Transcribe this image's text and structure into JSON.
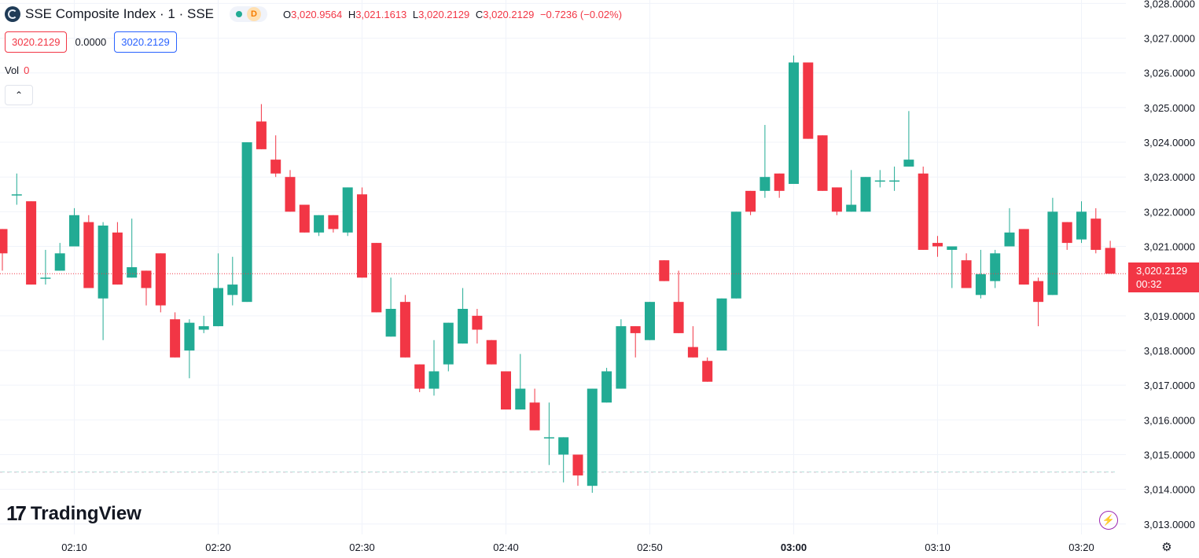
{
  "header": {
    "title": "SSE Composite Index · 1 · SSE",
    "market_badge": "D",
    "ohlc": {
      "o_label": "O",
      "o_value": "3,020.9564",
      "h_label": "H",
      "h_value": "3,021.1613",
      "l_label": "L",
      "l_value": "3,020.2129",
      "c_label": "C",
      "c_value": "3,020.2129",
      "change": "−0.7236 (−0.02%)"
    },
    "sell_price": "3020.2129",
    "spread": "0.0000",
    "buy_price": "3020.2129"
  },
  "volume": {
    "label": "Vol",
    "value": "0"
  },
  "collapse_icon": "chevron-up-icon",
  "branding": {
    "logo_text": "TradingView",
    "logo_mark": "17"
  },
  "price_label": {
    "price": "3,020.2129",
    "countdown": "00:32"
  },
  "colors": {
    "up": "#22ab94",
    "down": "#f23645",
    "grid": "#f0f3fa",
    "text": "#131722"
  },
  "chart_data": {
    "type": "candlestick",
    "y_ticks": [
      3013,
      3014,
      3015,
      3016,
      3017,
      3018,
      3019,
      3021,
      3022,
      3023,
      3024,
      3025,
      3026,
      3027,
      3028
    ],
    "y_tick_decimals": 4,
    "ylim": [
      3012.7,
      3028.1
    ],
    "x_ticks": [
      {
        "i": 5,
        "label": "02:10",
        "bold": false
      },
      {
        "i": 15,
        "label": "02:20",
        "bold": false
      },
      {
        "i": 25,
        "label": "02:30",
        "bold": false
      },
      {
        "i": 35,
        "label": "02:40",
        "bold": false
      },
      {
        "i": 45,
        "label": "02:50",
        "bold": false
      },
      {
        "i": 55,
        "label": "03:00",
        "bold": true
      },
      {
        "i": 65,
        "label": "03:10",
        "bold": false
      },
      {
        "i": 75,
        "label": "03:20",
        "bold": false
      }
    ],
    "last_price": 3020.2129,
    "baseline_price": 3014.5,
    "candles": [
      {
        "t": "02:05",
        "o": 3021.5,
        "h": 3021.5,
        "l": 3020.3,
        "c": 3020.8
      },
      {
        "t": "02:06",
        "o": 3022.5,
        "h": 3023.1,
        "l": 3022.2,
        "c": 3022.5
      },
      {
        "t": "02:07",
        "o": 3022.3,
        "h": 3022.3,
        "l": 3019.9,
        "c": 3019.9
      },
      {
        "t": "02:08",
        "o": 3020.1,
        "h": 3020.9,
        "l": 3019.9,
        "c": 3020.1
      },
      {
        "t": "02:09",
        "o": 3020.3,
        "h": 3021.1,
        "l": 3020.3,
        "c": 3020.8
      },
      {
        "t": "02:10",
        "o": 3021.0,
        "h": 3022.1,
        "l": 3021.0,
        "c": 3021.9
      },
      {
        "t": "02:11",
        "o": 3021.7,
        "h": 3021.9,
        "l": 3019.8,
        "c": 3019.8
      },
      {
        "t": "02:12",
        "o": 3019.5,
        "h": 3021.7,
        "l": 3018.3,
        "c": 3021.6
      },
      {
        "t": "02:13",
        "o": 3021.4,
        "h": 3021.7,
        "l": 3019.9,
        "c": 3019.9
      },
      {
        "t": "02:14",
        "o": 3020.1,
        "h": 3021.8,
        "l": 3020.1,
        "c": 3020.4
      },
      {
        "t": "02:15",
        "o": 3020.3,
        "h": 3020.3,
        "l": 3019.3,
        "c": 3019.8
      },
      {
        "t": "02:16",
        "o": 3020.8,
        "h": 3020.8,
        "l": 3019.1,
        "c": 3019.3
      },
      {
        "t": "02:17",
        "o": 3018.9,
        "h": 3019.1,
        "l": 3017.8,
        "c": 3017.8
      },
      {
        "t": "02:18",
        "o": 3018.0,
        "h": 3018.9,
        "l": 3017.2,
        "c": 3018.8
      },
      {
        "t": "02:19",
        "o": 3018.6,
        "h": 3019.0,
        "l": 3018.5,
        "c": 3018.7
      },
      {
        "t": "02:20",
        "o": 3018.7,
        "h": 3020.8,
        "l": 3018.7,
        "c": 3019.8
      },
      {
        "t": "02:21",
        "o": 3019.6,
        "h": 3020.7,
        "l": 3019.3,
        "c": 3019.9
      },
      {
        "t": "02:22",
        "o": 3019.4,
        "h": 3024.0,
        "l": 3019.4,
        "c": 3024.0
      },
      {
        "t": "02:23",
        "o": 3024.6,
        "h": 3025.1,
        "l": 3023.8,
        "c": 3023.8
      },
      {
        "t": "02:24",
        "o": 3023.5,
        "h": 3024.2,
        "l": 3023.0,
        "c": 3023.1
      },
      {
        "t": "02:25",
        "o": 3023.0,
        "h": 3023.2,
        "l": 3022.0,
        "c": 3022.0
      },
      {
        "t": "02:26",
        "o": 3022.2,
        "h": 3022.2,
        "l": 3021.4,
        "c": 3021.4
      },
      {
        "t": "02:27",
        "o": 3021.4,
        "h": 3021.9,
        "l": 3021.3,
        "c": 3021.9
      },
      {
        "t": "02:28",
        "o": 3021.9,
        "h": 3021.9,
        "l": 3021.4,
        "c": 3021.5
      },
      {
        "t": "02:29",
        "o": 3021.4,
        "h": 3022.7,
        "l": 3021.3,
        "c": 3022.7
      },
      {
        "t": "02:30",
        "o": 3022.5,
        "h": 3022.7,
        "l": 3020.1,
        "c": 3020.1
      },
      {
        "t": "02:31",
        "o": 3021.1,
        "h": 3021.1,
        "l": 3019.1,
        "c": 3019.1
      },
      {
        "t": "02:32",
        "o": 3018.4,
        "h": 3020.1,
        "l": 3018.4,
        "c": 3019.2
      },
      {
        "t": "02:33",
        "o": 3019.4,
        "h": 3019.6,
        "l": 3017.8,
        "c": 3017.8
      },
      {
        "t": "02:34",
        "o": 3017.6,
        "h": 3017.6,
        "l": 3016.8,
        "c": 3016.9
      },
      {
        "t": "02:35",
        "o": 3016.9,
        "h": 3018.3,
        "l": 3016.7,
        "c": 3017.4
      },
      {
        "t": "02:36",
        "o": 3017.6,
        "h": 3018.8,
        "l": 3017.4,
        "c": 3018.8
      },
      {
        "t": "02:37",
        "o": 3018.2,
        "h": 3019.8,
        "l": 3018.2,
        "c": 3019.2
      },
      {
        "t": "02:38",
        "o": 3019.0,
        "h": 3019.2,
        "l": 3018.2,
        "c": 3018.6
      },
      {
        "t": "02:39",
        "o": 3018.3,
        "h": 3018.3,
        "l": 3017.6,
        "c": 3017.6
      },
      {
        "t": "02:40",
        "o": 3017.4,
        "h": 3017.4,
        "l": 3016.3,
        "c": 3016.3
      },
      {
        "t": "02:41",
        "o": 3016.3,
        "h": 3017.9,
        "l": 3016.3,
        "c": 3016.9
      },
      {
        "t": "02:42",
        "o": 3016.5,
        "h": 3016.9,
        "l": 3015.7,
        "c": 3015.7
      },
      {
        "t": "02:43",
        "o": 3015.5,
        "h": 3016.5,
        "l": 3014.7,
        "c": 3015.5
      },
      {
        "t": "02:44",
        "o": 3015.0,
        "h": 3015.5,
        "l": 3014.2,
        "c": 3015.5
      },
      {
        "t": "02:45",
        "o": 3015.0,
        "h": 3015.0,
        "l": 3014.1,
        "c": 3014.4
      },
      {
        "t": "02:46",
        "o": 3014.1,
        "h": 3016.9,
        "l": 3013.9,
        "c": 3016.9
      },
      {
        "t": "02:47",
        "o": 3016.5,
        "h": 3017.5,
        "l": 3016.5,
        "c": 3017.4
      },
      {
        "t": "02:48",
        "o": 3016.9,
        "h": 3018.9,
        "l": 3016.9,
        "c": 3018.7
      },
      {
        "t": "02:49",
        "o": 3018.7,
        "h": 3018.7,
        "l": 3017.8,
        "c": 3018.5
      },
      {
        "t": "02:50",
        "o": 3018.3,
        "h": 3019.4,
        "l": 3018.3,
        "c": 3019.4
      },
      {
        "t": "02:51",
        "o": 3020.6,
        "h": 3020.6,
        "l": 3020.0,
        "c": 3020.0
      },
      {
        "t": "02:52",
        "o": 3019.4,
        "h": 3020.3,
        "l": 3018.5,
        "c": 3018.5
      },
      {
        "t": "02:53",
        "o": 3018.1,
        "h": 3018.7,
        "l": 3017.8,
        "c": 3017.8
      },
      {
        "t": "02:54",
        "o": 3017.7,
        "h": 3017.8,
        "l": 3017.1,
        "c": 3017.1
      },
      {
        "t": "02:55",
        "o": 3018.0,
        "h": 3019.5,
        "l": 3018.0,
        "c": 3019.5
      },
      {
        "t": "02:56",
        "o": 3019.5,
        "h": 3022.0,
        "l": 3019.5,
        "c": 3022.0
      },
      {
        "t": "02:57",
        "o": 3022.6,
        "h": 3022.6,
        "l": 3021.9,
        "c": 3022.0
      },
      {
        "t": "02:58",
        "o": 3022.6,
        "h": 3024.5,
        "l": 3022.4,
        "c": 3023.0
      },
      {
        "t": "02:59",
        "o": 3023.1,
        "h": 3023.1,
        "l": 3022.4,
        "c": 3022.6
      },
      {
        "t": "03:00",
        "o": 3022.8,
        "h": 3026.5,
        "l": 3022.8,
        "c": 3026.3
      },
      {
        "t": "03:01",
        "o": 3026.3,
        "h": 3026.3,
        "l": 3024.1,
        "c": 3024.1
      },
      {
        "t": "03:02",
        "o": 3024.2,
        "h": 3024.2,
        "l": 3022.6,
        "c": 3022.6
      },
      {
        "t": "03:03",
        "o": 3022.7,
        "h": 3022.7,
        "l": 3021.9,
        "c": 3022.0
      },
      {
        "t": "03:04",
        "o": 3022.0,
        "h": 3023.2,
        "l": 3022.0,
        "c": 3022.2
      },
      {
        "t": "03:05",
        "o": 3022.0,
        "h": 3023.0,
        "l": 3022.0,
        "c": 3023.0
      },
      {
        "t": "03:06",
        "o": 3022.9,
        "h": 3023.2,
        "l": 3022.7,
        "c": 3022.9
      },
      {
        "t": "03:07",
        "o": 3022.9,
        "h": 3023.3,
        "l": 3022.6,
        "c": 3022.9
      },
      {
        "t": "03:08",
        "o": 3023.3,
        "h": 3024.9,
        "l": 3023.3,
        "c": 3023.5
      },
      {
        "t": "03:09",
        "o": 3023.1,
        "h": 3023.3,
        "l": 3020.9,
        "c": 3020.9
      },
      {
        "t": "03:10",
        "o": 3021.1,
        "h": 3021.3,
        "l": 3020.7,
        "c": 3021.0
      },
      {
        "t": "03:11",
        "o": 3020.9,
        "h": 3021.0,
        "l": 3019.8,
        "c": 3021.0
      },
      {
        "t": "03:12",
        "o": 3020.6,
        "h": 3020.8,
        "l": 3019.8,
        "c": 3019.8
      },
      {
        "t": "03:13",
        "o": 3019.6,
        "h": 3020.9,
        "l": 3019.5,
        "c": 3020.2
      },
      {
        "t": "03:14",
        "o": 3020.0,
        "h": 3020.9,
        "l": 3019.8,
        "c": 3020.8
      },
      {
        "t": "03:15",
        "o": 3021.0,
        "h": 3022.1,
        "l": 3021.0,
        "c": 3021.4
      },
      {
        "t": "03:16",
        "o": 3021.5,
        "h": 3021.5,
        "l": 3019.9,
        "c": 3019.9
      },
      {
        "t": "03:17",
        "o": 3020.0,
        "h": 3020.1,
        "l": 3018.7,
        "c": 3019.4
      },
      {
        "t": "03:18",
        "o": 3019.6,
        "h": 3022.4,
        "l": 3019.6,
        "c": 3022.0
      },
      {
        "t": "03:19",
        "o": 3021.7,
        "h": 3021.7,
        "l": 3020.9,
        "c": 3021.1
      },
      {
        "t": "03:20",
        "o": 3021.2,
        "h": 3022.3,
        "l": 3021.1,
        "c": 3022.0
      },
      {
        "t": "03:21",
        "o": 3021.8,
        "h": 3022.1,
        "l": 3020.8,
        "c": 3020.9
      },
      {
        "t": "03:22",
        "o": 3020.9564,
        "h": 3021.1613,
        "l": 3020.2129,
        "c": 3020.2129
      }
    ]
  }
}
